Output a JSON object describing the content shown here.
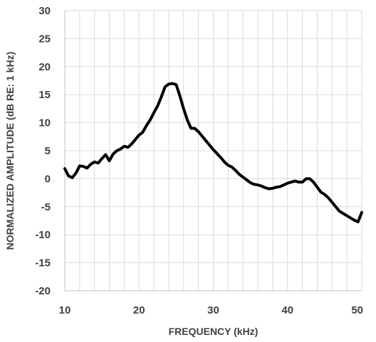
{
  "chart_data": {
    "type": "line",
    "title": "",
    "xlabel": "FREQUENCY (kHz)",
    "ylabel": "NORMALIZED AMPLITUDE (dB RE: 1 kHz)",
    "xlim": [
      10,
      50
    ],
    "ylim": [
      -20,
      30
    ],
    "xticks": [
      10,
      20,
      30,
      40,
      50
    ],
    "yticks": [
      30,
      25,
      20,
      15,
      10,
      5,
      0,
      -5,
      -10,
      -15,
      -20
    ],
    "x_minor_step": 2,
    "grid": true,
    "legend": "none",
    "line_color": "#000000",
    "grid_color": "#d9d9d9",
    "series": [
      {
        "x": [
          10,
          10.5,
          11,
          11.5,
          12,
          12.5,
          13,
          13.5,
          14,
          14.5,
          15,
          15.5,
          16,
          16.5,
          17,
          17.5,
          18,
          18.5,
          19,
          19.5,
          20,
          20.5,
          21,
          21.5,
          22,
          22.5,
          23,
          23.5,
          24,
          24.5,
          25,
          25.5,
          26,
          26.5,
          27,
          27.5,
          28,
          28.5,
          29,
          29.5,
          30,
          30.5,
          31,
          31.5,
          32,
          32.5,
          33,
          33.5,
          34,
          34.5,
          35,
          35.5,
          36,
          36.5,
          37,
          37.5,
          38,
          38.5,
          39,
          39.5,
          40,
          40.5,
          41,
          41.5,
          42,
          42.5,
          43,
          43.5,
          44,
          44.5,
          45,
          45.5,
          46,
          46.5,
          47,
          47.5,
          48,
          48.5,
          49,
          49.5,
          50
        ],
        "y": [
          1.8,
          0.5,
          0.2,
          1.0,
          2.3,
          2.2,
          1.9,
          2.6,
          3.0,
          2.8,
          3.6,
          4.3,
          3.2,
          4.4,
          5.0,
          5.3,
          5.8,
          5.6,
          6.2,
          7.0,
          7.8,
          8.3,
          9.5,
          10.5,
          11.8,
          13.0,
          14.6,
          16.4,
          16.9,
          17.0,
          16.8,
          14.8,
          12.5,
          10.5,
          9.0,
          9.0,
          8.4,
          7.6,
          6.8,
          6.0,
          5.2,
          4.5,
          3.8,
          3.0,
          2.4,
          2.1,
          1.5,
          0.8,
          0.3,
          -0.2,
          -0.7,
          -1.0,
          -1.1,
          -1.3,
          -1.6,
          -1.8,
          -1.7,
          -1.5,
          -1.4,
          -1.1,
          -0.8,
          -0.6,
          -0.4,
          -0.6,
          -0.6,
          0.0,
          0.0,
          -0.6,
          -1.5,
          -2.4,
          -2.8,
          -3.4,
          -4.2,
          -5.0,
          -5.8,
          -6.2,
          -6.6,
          -7.0,
          -7.4,
          -7.7,
          -6.0
        ]
      }
    ]
  }
}
